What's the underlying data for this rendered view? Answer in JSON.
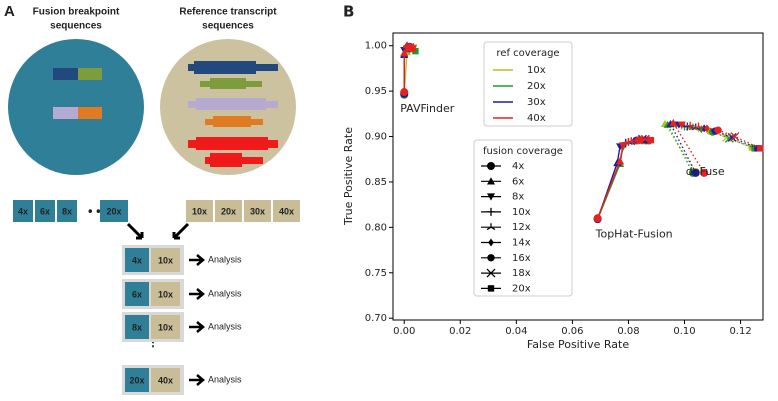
{
  "panel_a": {
    "label": "A",
    "left_title": [
      "Fusion breakpoint",
      "sequences"
    ],
    "right_title": [
      "Reference transcript",
      "sequences"
    ],
    "fusion_coverages": [
      "4x",
      "6x",
      "8x",
      "20x"
    ],
    "ref_coverages": [
      "10x",
      "20x",
      "30x",
      "40x"
    ],
    "pairs": [
      {
        "fusion": "4x",
        "ref": "10x",
        "result": "Analysis"
      },
      {
        "fusion": "6x",
        "ref": "10x",
        "result": "Analysis"
      },
      {
        "fusion": "8x",
        "ref": "10x",
        "result": "Analysis"
      },
      {
        "fusion": "20x",
        "ref": "40x",
        "result": "Analysis"
      }
    ]
  },
  "chart_data": {
    "type": "line",
    "label": "B",
    "x_label": "False Positive Rate",
    "y_label": "True Positive Rate",
    "xlim": [
      -0.004,
      0.128
    ],
    "ylim": [
      0.698,
      1.014
    ],
    "xticks": [
      {
        "value": 0,
        "label": "0.00"
      },
      {
        "value": 0.02,
        "label": "0.02"
      },
      {
        "value": 0.04,
        "label": "0.04"
      },
      {
        "value": 0.06,
        "label": "0.06"
      },
      {
        "value": 0.08,
        "label": "0.08"
      },
      {
        "value": 0.1,
        "label": "0.10"
      },
      {
        "value": 0.12,
        "label": "0.12"
      }
    ],
    "yticks": [
      {
        "value": 0.7,
        "label": "0.70"
      },
      {
        "value": 0.75,
        "label": "0.75"
      },
      {
        "value": 0.8,
        "label": "0.80"
      },
      {
        "value": 0.85,
        "label": "0.85"
      },
      {
        "value": 0.9,
        "label": "0.90"
      },
      {
        "value": 0.95,
        "label": "0.95"
      },
      {
        "value": 1,
        "label": "1.00"
      }
    ],
    "groups": [
      {
        "label": "PAVFinder",
        "linestyle": "solid"
      },
      {
        "label": "TopHat-Fusion",
        "linestyle": "solid"
      },
      {
        "label": "deFuse",
        "linestyle": "dotted"
      }
    ],
    "legend_title": "ref coverage",
    "series": [
      {
        "name": "10x",
        "color": "#bcbd22",
        "x": [
          0.0,
          0.001,
          0.001,
          0.002,
          0.002,
          0.002,
          0.003,
          0.003,
          0.003,
          null,
          0.069,
          0.077,
          0.078,
          0.079,
          0.08,
          0.082,
          0.083,
          0.085,
          0.086,
          null,
          0.104,
          0.093,
          0.096,
          0.099,
          0.102,
          0.105,
          0.109,
          0.115,
          0.124
        ],
        "values": [
          0.948,
          0.993,
          0.996,
          0.998,
          0.997,
          0.999,
          0.998,
          0.997,
          0.996,
          null,
          0.81,
          0.872,
          0.889,
          0.893,
          0.894,
          0.895,
          0.895,
          0.896,
          0.895,
          null,
          0.861,
          0.914,
          0.913,
          0.912,
          0.91,
          0.909,
          0.906,
          0.899,
          0.888
        ]
      },
      {
        "name": "20x",
        "color": "#1f9a2a",
        "x": [
          0.0,
          0.0,
          0.001,
          0.001,
          0.002,
          0.002,
          0.002,
          0.003,
          0.004,
          null,
          0.069,
          0.077,
          0.078,
          0.079,
          0.081,
          0.082,
          0.084,
          0.086,
          0.087,
          null,
          0.103,
          0.094,
          0.097,
          0.1,
          0.103,
          0.106,
          0.11,
          0.116,
          0.125
        ],
        "values": [
          0.946,
          0.991,
          0.996,
          0.999,
          0.998,
          0.999,
          0.997,
          0.996,
          0.994,
          null,
          0.809,
          0.87,
          0.888,
          0.892,
          0.894,
          0.895,
          0.896,
          0.896,
          0.895,
          null,
          0.86,
          0.913,
          0.913,
          0.911,
          0.91,
          0.908,
          0.905,
          0.898,
          0.887
        ]
      },
      {
        "name": "30x",
        "color": "#1c1ca8",
        "x": [
          0.0,
          0.0,
          0.0,
          0.001,
          0.001,
          0.001,
          0.002,
          0.002,
          0.002,
          null,
          0.069,
          0.076,
          0.077,
          0.079,
          0.08,
          0.082,
          0.083,
          0.085,
          0.086,
          null,
          0.104,
          0.095,
          0.098,
          0.101,
          0.104,
          0.107,
          0.111,
          0.117,
          0.126
        ],
        "values": [
          0.947,
          0.99,
          0.995,
          0.998,
          0.999,
          1.0,
          0.999,
          0.998,
          0.997,
          null,
          0.809,
          0.871,
          0.889,
          0.893,
          0.894,
          0.895,
          0.896,
          0.897,
          0.896,
          null,
          0.86,
          0.914,
          0.913,
          0.911,
          0.91,
          0.909,
          0.906,
          0.899,
          0.887
        ]
      },
      {
        "name": "40x",
        "color": "#e8211f",
        "x": [
          0.0,
          0.0,
          0.001,
          0.001,
          0.001,
          0.002,
          0.002,
          0.002,
          0.003,
          null,
          0.069,
          0.077,
          0.078,
          0.08,
          0.081,
          0.083,
          0.084,
          0.086,
          0.088,
          null,
          0.107,
          0.096,
          0.099,
          0.102,
          0.105,
          0.108,
          0.112,
          0.118,
          0.127
        ],
        "values": [
          0.949,
          0.992,
          0.997,
          0.999,
          1.0,
          0.999,
          0.998,
          0.998,
          0.997,
          null,
          0.81,
          0.873,
          0.89,
          0.894,
          0.895,
          0.896,
          0.896,
          0.897,
          0.896,
          null,
          0.86,
          0.915,
          0.913,
          0.912,
          0.911,
          0.909,
          0.907,
          0.9,
          0.887
        ]
      }
    ],
    "marker_legend": {
      "title": "fusion coverage",
      "entries": [
        {
          "name": "4x",
          "marker": "circle"
        },
        {
          "name": "6x",
          "marker": "triangle-up"
        },
        {
          "name": "8x",
          "marker": "triangle-down"
        },
        {
          "name": "10x",
          "marker": "plus"
        },
        {
          "name": "12x",
          "marker": "tri-up"
        },
        {
          "name": "14x",
          "marker": "diamond"
        },
        {
          "name": "16x",
          "marker": "octagon"
        },
        {
          "name": "18x",
          "marker": "x"
        },
        {
          "name": "20x",
          "marker": "square"
        }
      ]
    }
  }
}
